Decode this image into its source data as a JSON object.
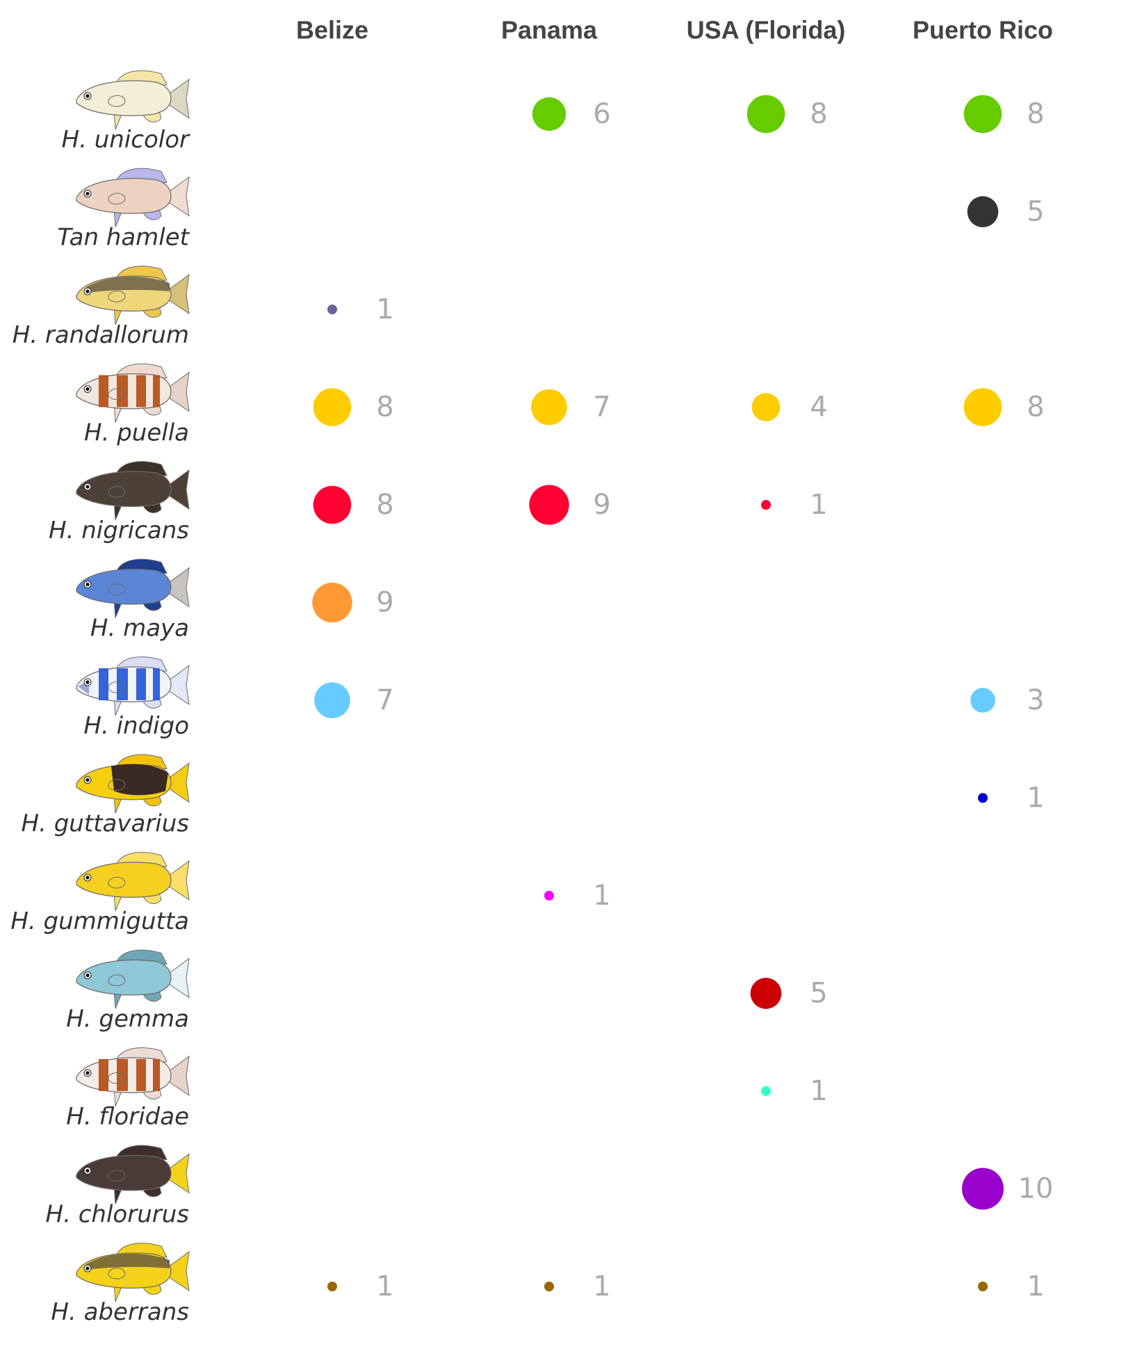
{
  "chart_data": {
    "type": "scatter",
    "description_hint": "dot matrix: columns = locations, rows = species; dot size and number = count",
    "columns": [
      "Belize",
      "Panama",
      "USA (Florida)",
      "Puerto Rico"
    ],
    "rows": [
      {
        "species": "H. unicolor",
        "color": "#66cc00",
        "fish": {
          "body": "#f3eed6",
          "fin": "#f6e6a6",
          "tail": "#dcd9c3",
          "pattern": "plain"
        }
      },
      {
        "species": "Tan hamlet",
        "color": "#333333",
        "fish": {
          "body": "#eed2c1",
          "fin": "#b9b7ec",
          "tail": "#f1dcd0",
          "pattern": "plain"
        }
      },
      {
        "species": "H. randallorum",
        "color": "#666699",
        "fish": {
          "body": "#eed67a",
          "fin": "#eec64a",
          "tail": "#d7c07a",
          "pattern": "dark-top"
        }
      },
      {
        "species": "H. puella",
        "color": "#ffcc00",
        "fish": {
          "body": "#f3e6dc",
          "fin": "#eedad0",
          "tail": "#e6d2c8",
          "pattern": "bars-brown"
        }
      },
      {
        "species": "H. nigricans",
        "color": "#ff0033",
        "fish": {
          "body": "#4d4036",
          "fin": "#3d322a",
          "tail": "#4d4036",
          "pattern": "plain"
        }
      },
      {
        "species": "H. maya",
        "color": "#ff9933",
        "fish": {
          "body": "#5b86d6",
          "fin": "#1f3f8f",
          "tail": "#c8c4bf",
          "pattern": "plain"
        }
      },
      {
        "species": "H. indigo",
        "color": "#66ccff",
        "fish": {
          "body": "#f2f4fb",
          "fin": "#d9def4",
          "tail": "#e3e7f7",
          "pattern": "bars-blue"
        }
      },
      {
        "species": "H. guttavarius",
        "color": "#0000cc",
        "fish": {
          "body": "#f6cf10",
          "fin": "#f4c20c",
          "tail": "#f4cc10",
          "pattern": "dark-saddle"
        }
      },
      {
        "species": "H. gummigutta",
        "color": "#ff00ff",
        "fish": {
          "body": "#f6d020",
          "fin": "#f9df6a",
          "tail": "#f9df6a",
          "pattern": "plain"
        }
      },
      {
        "species": "H. gemma",
        "color": "#cc0000",
        "fish": {
          "body": "#8fc8d6",
          "fin": "#6ea6b6",
          "tail": "#e8f2f5",
          "pattern": "plain"
        }
      },
      {
        "species": "H. floridae",
        "color": "#33ffcc",
        "fish": {
          "body": "#f6ece6",
          "fin": "#ecdcd4",
          "tail": "#e6d4ca",
          "pattern": "bars-brown"
        }
      },
      {
        "species": "H. chlorurus",
        "color": "#9900cc",
        "fish": {
          "body": "#4b3b38",
          "fin": "#3c2f2d",
          "tail": "#f4d21a",
          "pattern": "plain"
        }
      },
      {
        "species": "H. aberrans",
        "color": "#996600",
        "fish": {
          "body": "#f4d21a",
          "fin": "#f4d21a",
          "tail": "#f4d21a",
          "pattern": "dark-top"
        }
      }
    ],
    "values": [
      [
        null,
        6,
        8,
        8
      ],
      [
        null,
        null,
        null,
        5
      ],
      [
        1,
        null,
        null,
        null
      ],
      [
        8,
        7,
        4,
        8
      ],
      [
        8,
        9,
        1,
        null
      ],
      [
        9,
        null,
        null,
        null
      ],
      [
        7,
        null,
        null,
        3
      ],
      [
        null,
        null,
        null,
        1
      ],
      [
        null,
        1,
        null,
        null
      ],
      [
        null,
        null,
        5,
        null
      ],
      [
        null,
        null,
        1,
        null
      ],
      [
        null,
        null,
        null,
        10
      ],
      [
        1,
        1,
        null,
        1
      ]
    ],
    "size_range": [
      1,
      10
    ],
    "grid": false,
    "legend": "none"
  }
}
